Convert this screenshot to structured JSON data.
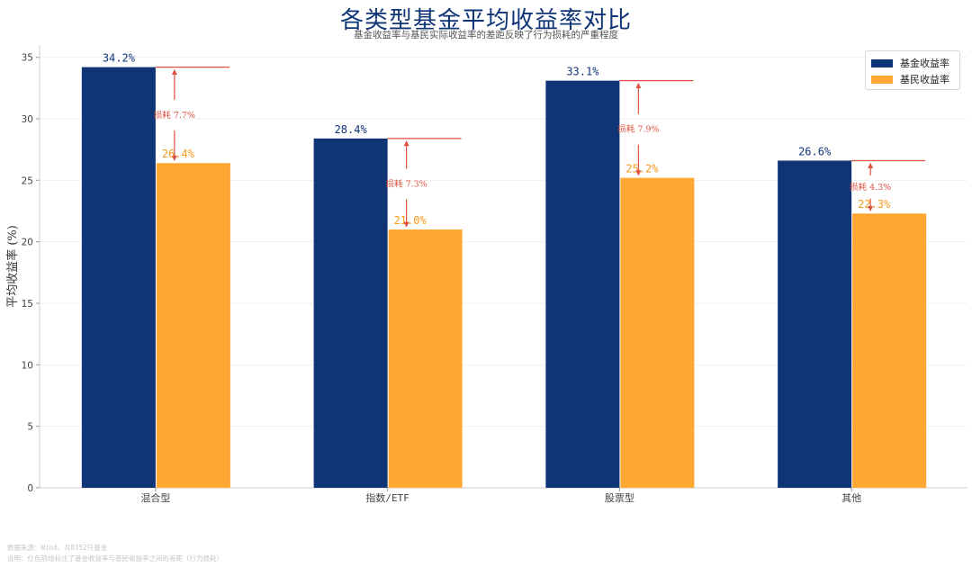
{
  "chart_data": {
    "type": "bar",
    "title": "各类型基金平均收益率对比",
    "subtitle": "基金收益率与基民实际收益率的差距反映了行为损耗的严重程度",
    "ylabel": "平均收益率 (%)",
    "xlabel": "",
    "ylim": [
      0,
      36
    ],
    "yticks": [
      0,
      5,
      10,
      15,
      20,
      25,
      30,
      35
    ],
    "categories": [
      "混合型",
      "指数/ETF",
      "股票型",
      "其他"
    ],
    "series": [
      {
        "name": "基金收益率",
        "color": "#0f3577",
        "values": [
          34.2,
          28.4,
          33.1,
          26.6
        ]
      },
      {
        "name": "基民收益率",
        "color": "#ffa733",
        "values": [
          26.4,
          21.0,
          25.2,
          22.3
        ]
      }
    ],
    "value_labels": [
      [
        "34.2%",
        "28.4%",
        "33.1%",
        "26.6%"
      ],
      [
        "26.4%",
        "21.0%",
        "25.2%",
        "22.3%"
      ]
    ],
    "gap_labels": [
      "损耗 7.7%",
      "损耗 7.3%",
      "损耗 7.9%",
      "损耗 4.3%"
    ],
    "gap_color": "#e05040",
    "legend_position": "top-right",
    "grid": "horizontal-faint"
  },
  "footer": {
    "source": "数据来源：Wind，共8152只基金",
    "note": "说明：红色箭线标注了基金收益率与基民收益率之间的差距（行为损耗）"
  }
}
